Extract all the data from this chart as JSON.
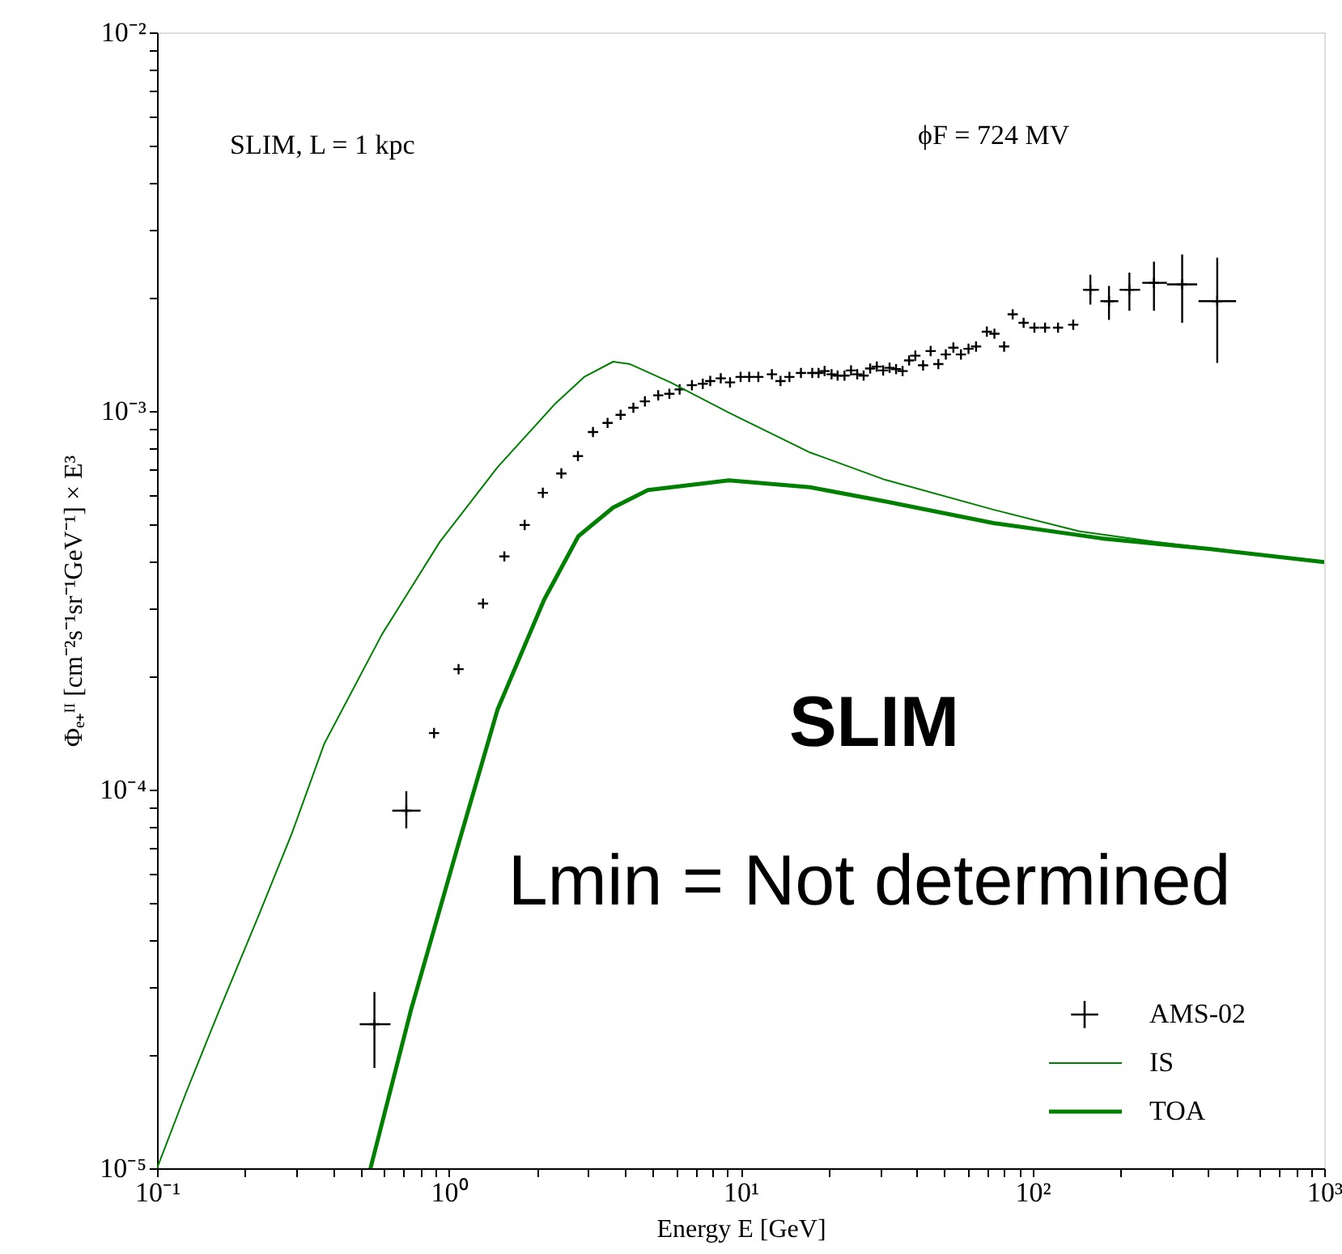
{
  "chart_data": {
    "type": "line",
    "xlabel": "Energy E [GeV]",
    "ylabel": "Φₑ₊ᴵᴵ [cm⁻²s⁻¹sr⁻¹GeV⁻¹] × E³",
    "annotations": [
      "SLIM, L = 1 kpc",
      "ϕF = 724 MV",
      "SLIM",
      "Lmin = Not determined"
    ],
    "log": "xy",
    "grid": false,
    "legend": "bottom right",
    "xlim": [
      0.1,
      1000
    ],
    "ylim": [
      1e-05,
      0.01
    ],
    "xticks": [
      {
        "value": 0.1,
        "label": "10⁻¹"
      },
      {
        "value": 0.2,
        "label": null
      },
      {
        "value": 0.3,
        "label": null
      },
      {
        "value": 0.4,
        "label": null
      },
      {
        "value": 0.5,
        "label": null
      },
      {
        "value": 0.6,
        "label": null
      },
      {
        "value": 0.7,
        "label": null
      },
      {
        "value": 0.8,
        "label": null
      },
      {
        "value": 0.9,
        "label": null
      },
      {
        "value": 1,
        "label": "10⁰"
      },
      {
        "value": 2,
        "label": null
      },
      {
        "value": 3,
        "label": null
      },
      {
        "value": 4,
        "label": null
      },
      {
        "value": 5,
        "label": null
      },
      {
        "value": 6,
        "label": null
      },
      {
        "value": 7,
        "label": null
      },
      {
        "value": 8,
        "label": null
      },
      {
        "value": 9,
        "label": null
      },
      {
        "value": 10,
        "label": "10¹"
      },
      {
        "value": 20,
        "label": null
      },
      {
        "value": 30,
        "label": null
      },
      {
        "value": 40,
        "label": null
      },
      {
        "value": 50,
        "label": null
      },
      {
        "value": 60,
        "label": null
      },
      {
        "value": 70,
        "label": null
      },
      {
        "value": 80,
        "label": null
      },
      {
        "value": 90,
        "label": null
      },
      {
        "value": 100,
        "label": "10²"
      },
      {
        "value": 200,
        "label": null
      },
      {
        "value": 300,
        "label": null
      },
      {
        "value": 400,
        "label": null
      },
      {
        "value": 500,
        "label": null
      },
      {
        "value": 600,
        "label": null
      },
      {
        "value": 700,
        "label": null
      },
      {
        "value": 800,
        "label": null
      },
      {
        "value": 900,
        "label": null
      },
      {
        "value": 1000,
        "label": "10³"
      }
    ],
    "yticks": [
      {
        "value": 1e-05,
        "label": "10⁻⁵"
      },
      {
        "value": 2e-05,
        "label": null
      },
      {
        "value": 3e-05,
        "label": null
      },
      {
        "value": 4e-05,
        "label": null
      },
      {
        "value": 5e-05,
        "label": null
      },
      {
        "value": 6e-05,
        "label": null
      },
      {
        "value": 7e-05,
        "label": null
      },
      {
        "value": 8e-05,
        "label": null
      },
      {
        "value": 9e-05,
        "label": null
      },
      {
        "value": 0.0001,
        "label": "10⁻⁴"
      },
      {
        "value": 0.0002,
        "label": null
      },
      {
        "value": 0.0003,
        "label": null
      },
      {
        "value": 0.0004,
        "label": null
      },
      {
        "value": 0.0005,
        "label": null
      },
      {
        "value": 0.0006,
        "label": null
      },
      {
        "value": 0.0007,
        "label": null
      },
      {
        "value": 0.0008,
        "label": null
      },
      {
        "value": 0.0009,
        "label": null
      },
      {
        "value": 0.001,
        "label": "10⁻³"
      },
      {
        "value": 0.002,
        "label": null
      },
      {
        "value": 0.003,
        "label": null
      },
      {
        "value": 0.004,
        "label": null
      },
      {
        "value": 0.005,
        "label": null
      },
      {
        "value": 0.006,
        "label": null
      },
      {
        "value": 0.007,
        "label": null
      },
      {
        "value": 0.008,
        "label": null
      },
      {
        "value": 0.009,
        "label": null
      },
      {
        "value": 0.01,
        "label": "10⁻²"
      }
    ],
    "series": [
      {
        "name": "AMS-02",
        "type": "scatter",
        "marker": "cross",
        "color": "#000000",
        "x": [
          0.556,
          0.715,
          0.89,
          1.08,
          1.31,
          1.55,
          1.82,
          2.1,
          2.43,
          2.77,
          3.12,
          3.5,
          3.88,
          4.29,
          4.7,
          5.22,
          5.7,
          6.18,
          6.81,
          7.42,
          7.87,
          8.55,
          9.2,
          10.0,
          10.7,
          11.5,
          12.8,
          13.7,
          14.7,
          16.1,
          17.6,
          18.5,
          19.4,
          20.5,
          21.5,
          22.7,
          23.9,
          25.1,
          26.4,
          27.8,
          29.3,
          30.8,
          32.4,
          34.1,
          35.9,
          37.8,
          39.7,
          42.2,
          44.8,
          47.6,
          50.5,
          53.6,
          56.9,
          60.4,
          64.1,
          69.8,
          74.1,
          80.0,
          85.6,
          93.3,
          101.6,
          110.5,
          122.4,
          138,
          158,
          183,
          215,
          261,
          326,
          430
        ],
        "values": [
          2.4e-05,
          8.8e-05,
          0.000141,
          0.000208,
          0.00031,
          0.000413,
          0.0005,
          0.000608,
          0.000684,
          0.00076,
          0.00088,
          0.00093,
          0.000977,
          0.00102,
          0.00106,
          0.0011,
          0.00111,
          0.00114,
          0.00117,
          0.00118,
          0.0012,
          0.00122,
          0.00119,
          0.00123,
          0.00123,
          0.00123,
          0.00125,
          0.0012,
          0.00123,
          0.00126,
          0.00126,
          0.00126,
          0.001275,
          0.00125,
          0.00124,
          0.00124,
          0.00128,
          0.00125,
          0.00124,
          0.001295,
          0.00131,
          0.00128,
          0.0013,
          0.00129,
          0.001275,
          0.00136,
          0.0014,
          0.00132,
          0.00144,
          0.00133,
          0.00141,
          0.00147,
          0.00141,
          0.00146,
          0.00148,
          0.00162,
          0.0016,
          0.00148,
          0.0018,
          0.00171,
          0.00166,
          0.00166,
          0.00166,
          0.00169,
          0.00209,
          0.00195,
          0.00209,
          0.00218,
          0.00216,
          0.00195
        ],
        "errors": [
          [
            1.84e-05,
            2.92e-05
          ],
          [
            7.9e-05,
            9.9e-05
          ],
          null,
          null,
          null,
          null,
          null,
          null,
          null,
          null,
          null,
          null,
          null,
          null,
          null,
          null,
          null,
          null,
          null,
          null,
          null,
          null,
          null,
          null,
          null,
          null,
          null,
          null,
          null,
          null,
          null,
          null,
          null,
          null,
          null,
          null,
          null,
          null,
          null,
          null,
          null,
          null,
          null,
          null,
          null,
          null,
          null,
          null,
          null,
          null,
          null,
          null,
          null,
          null,
          null,
          null,
          null,
          null,
          null,
          null,
          null,
          null,
          null,
          null,
          [
            0.00191,
            0.00229
          ],
          [
            0.00174,
            0.00214
          ],
          [
            0.00184,
            0.00232
          ],
          [
            0.00184,
            0.00248
          ],
          [
            0.00171,
            0.00259
          ],
          [
            0.00134,
            0.00254
          ]
        ],
        "xerrors": [
          [
            0.495,
            0.631
          ],
          [
            0.64,
            0.8
          ],
          null,
          null,
          null,
          null,
          null,
          null,
          null,
          null,
          null,
          null,
          null,
          null,
          null,
          null,
          null,
          null,
          null,
          null,
          null,
          null,
          null,
          null,
          null,
          null,
          null,
          null,
          null,
          null,
          null,
          null,
          null,
          null,
          null,
          null,
          null,
          null,
          null,
          null,
          null,
          null,
          null,
          null,
          null,
          null,
          null,
          null,
          null,
          null,
          null,
          null,
          null,
          null,
          null,
          null,
          null,
          null,
          null,
          null,
          null,
          null,
          null,
          null,
          [
            149,
            169
          ],
          [
            171,
            197
          ],
          [
            199,
            234
          ],
          [
            238,
            289
          ],
          [
            289,
            367
          ],
          [
            371,
            499
          ]
        ]
      },
      {
        "name": "IS",
        "color": "#008000",
        "x": [
          0.1,
          0.126,
          0.163,
          0.224,
          0.29,
          0.374,
          0.59,
          0.931,
          1.47,
          2.32,
          2.91,
          3.66,
          4.18,
          5.75,
          9.12,
          17.3,
          31.3,
          73.4,
          145,
          264,
          1000
        ],
        "values": [
          1e-05,
          1.59e-05,
          2.6e-05,
          4.69e-05,
          7.67e-05,
          0.000132,
          0.000257,
          0.000451,
          0.000711,
          0.001047,
          0.00123,
          0.00135,
          0.00133,
          0.00119,
          0.00099,
          0.000777,
          0.000658,
          0.000549,
          0.000481,
          0.000451,
          0.000399
        ]
      },
      {
        "name": "TOA",
        "color": "#008000",
        "x": [
          0.539,
          0.742,
          1.07,
          1.47,
          2.12,
          2.78,
          3.66,
          4.81,
          9.12,
          17.3,
          31.3,
          73.4,
          172,
          404,
          1000
        ],
        "values": [
          1e-05,
          2.62e-05,
          7.02e-05,
          0.000163,
          0.000317,
          0.000467,
          0.000556,
          0.000618,
          0.000656,
          0.000629,
          0.000577,
          0.000506,
          0.000461,
          0.000432,
          0.000399
        ]
      }
    ]
  }
}
